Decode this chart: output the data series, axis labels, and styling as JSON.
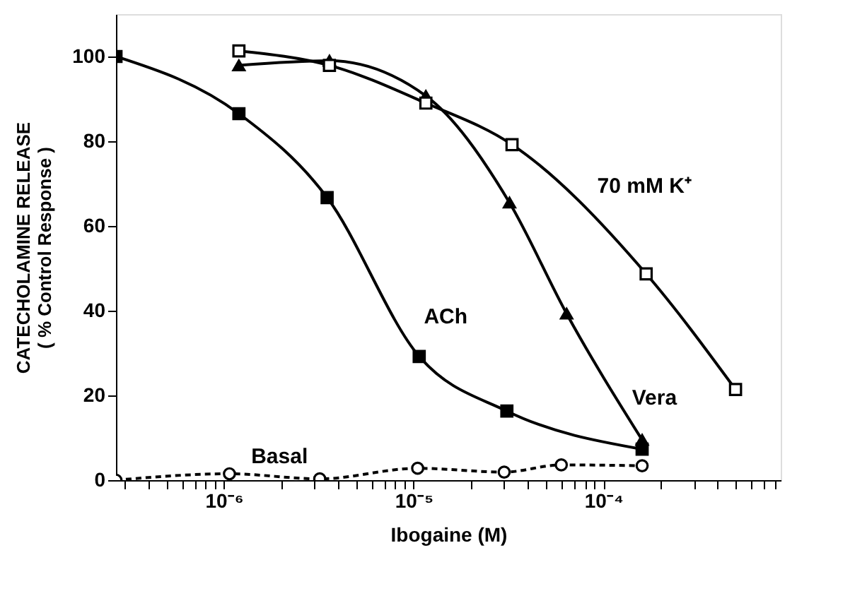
{
  "chart_data": {
    "type": "line",
    "xlabel": "Ibogaine (M)",
    "ylabel": "CATECHOLAMINE  RELEASE\n( % Control Response )",
    "log": "x",
    "xlim": [
      2.7e-07,
      0.00086
    ],
    "ylim": [
      0,
      110
    ],
    "yticks": [
      0,
      20,
      40,
      60,
      80,
      100
    ],
    "xticks": [
      {
        "value": 3e-07,
        "label": null
      },
      {
        "value": 4e-07,
        "label": null
      },
      {
        "value": 5e-07,
        "label": null
      },
      {
        "value": 6e-07,
        "label": null
      },
      {
        "value": 7e-07,
        "label": null
      },
      {
        "value": 8e-07,
        "label": null
      },
      {
        "value": 9e-07,
        "label": null
      },
      {
        "value": 1e-06,
        "label": "10⁻⁶"
      },
      {
        "value": 2e-06,
        "label": null
      },
      {
        "value": 3e-06,
        "label": null
      },
      {
        "value": 4e-06,
        "label": null
      },
      {
        "value": 5e-06,
        "label": null
      },
      {
        "value": 6e-06,
        "label": null
      },
      {
        "value": 7e-06,
        "label": null
      },
      {
        "value": 8e-06,
        "label": null
      },
      {
        "value": 9e-06,
        "label": null
      },
      {
        "value": 1e-05,
        "label": "10⁻⁵"
      },
      {
        "value": 2e-05,
        "label": null
      },
      {
        "value": 3e-05,
        "label": null
      },
      {
        "value": 4e-05,
        "label": null
      },
      {
        "value": 5e-05,
        "label": null
      },
      {
        "value": 6e-05,
        "label": null
      },
      {
        "value": 7e-05,
        "label": null
      },
      {
        "value": 8e-05,
        "label": null
      },
      {
        "value": 9e-05,
        "label": null
      },
      {
        "value": 0.0001,
        "label": "10⁻⁴"
      },
      {
        "value": 0.0002,
        "label": null
      },
      {
        "value": 0.0003,
        "label": null
      },
      {
        "value": 0.0004,
        "label": null
      },
      {
        "value": 0.0005,
        "label": null
      },
      {
        "value": 0.0006,
        "label": null
      },
      {
        "value": 0.0007,
        "label": null
      },
      {
        "value": 0.0008,
        "label": null
      }
    ],
    "grid": false,
    "series": [
      {
        "color": "#000000",
        "marker": "square",
        "line_style": "solid",
        "x": [
          2.7e-07,
          1.2e-06,
          3.5e-06,
          1.07e-05,
          3.1e-05,
          0.00016
        ],
        "values": [
          100,
          86.5,
          66.7,
          29.2,
          16.3,
          7.3
        ]
      },
      {
        "color": "#000000",
        "marker": "triangle",
        "line_style": "solid",
        "x": [
          1.2e-06,
          3.6e-06,
          1.16e-05,
          3.2e-05,
          6.4e-05,
          0.00016
        ],
        "values": [
          97.9,
          99,
          90.7,
          65.5,
          39.3,
          9.5
        ]
      },
      {
        "color": "#000000",
        "marker": "square",
        "line_style": "solid",
        "x": [
          1.2e-06,
          3.6e-06,
          1.16e-05,
          3.3e-05,
          0.000168,
          0.000497
        ],
        "values": [
          101.3,
          97.9,
          89,
          79.2,
          48.7,
          21.4
        ]
      },
      {
        "color": "#000000",
        "marker": "circle",
        "line_style": "dashed",
        "x": [
          2.7e-07,
          1.07e-06,
          3.2e-06,
          1.05e-05,
          3e-05,
          6e-05,
          0.00016
        ],
        "values": [
          0,
          1.5,
          0.3,
          2.8,
          1.9,
          3.6,
          3.4
        ]
      }
    ],
    "annotations": [
      "70 mM K⁺",
      "ACh",
      "Vera",
      "Basal"
    ]
  }
}
